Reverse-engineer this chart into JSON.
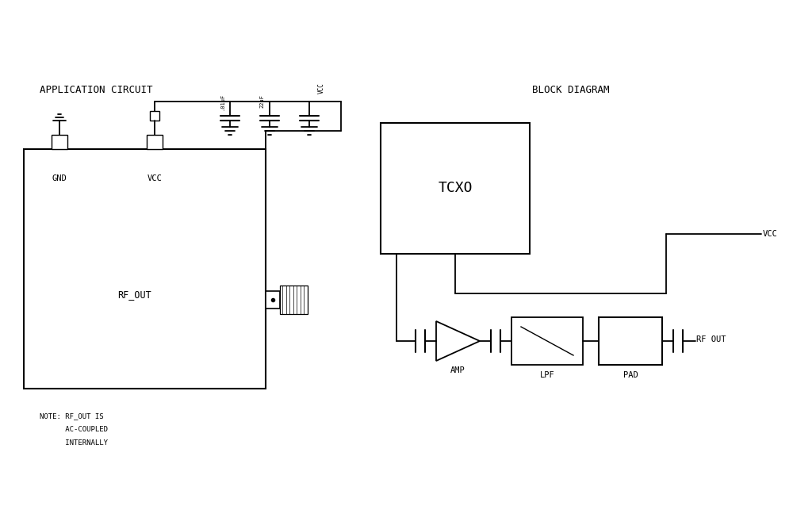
{
  "bg_color": "#ffffff",
  "line_color": "#000000",
  "fig_width": 10.0,
  "fig_height": 6.67,
  "dpi": 100,
  "app_circuit_title": "APPLICATION CIRCUIT",
  "block_diagram_title": "BLOCK DIAGRAM",
  "note_line1": "NOTE: RF_OUT IS",
  "note_line2": "      AC-COUPLED",
  "note_line3": "      INTERNALLY",
  "gnd_label": "GND",
  "vcc_label": "VCC",
  "rf_out_label": "RF_OUT",
  "tcxo_label": "TCXO",
  "amp_label": "AMP",
  "lpf_label": "LPF",
  "pad_label": "PAD",
  "vcc_bd_label": "VCC",
  "rf_out_bd_label": "RF OUT",
  "cap1_label": ".01uF",
  "cap2_label": "22uF"
}
